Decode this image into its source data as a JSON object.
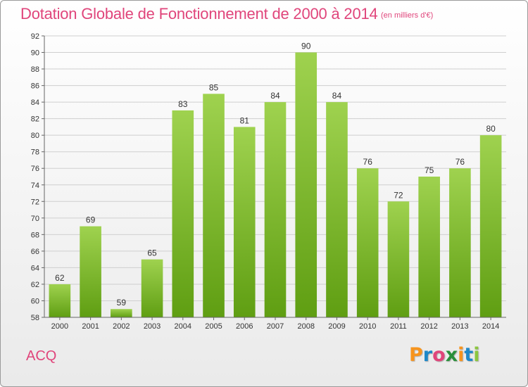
{
  "header": {
    "title": "Dotation Globale de Fonctionnement de 2000 à 2014",
    "subtitle": "(en milliers d'€)"
  },
  "footer": {
    "commune": "ACQ",
    "logo_text": "Proxiti",
    "logo_colors": [
      "#f7941d",
      "#1e88c8",
      "#e0457b",
      "#2a8f3b",
      "#f7941d",
      "#1e88c8",
      "#8cc63f"
    ]
  },
  "chart_data": {
    "type": "bar",
    "categories": [
      "2000",
      "2001",
      "2002",
      "2003",
      "2004",
      "2005",
      "2006",
      "2007",
      "2008",
      "2009",
      "2010",
      "2011",
      "2012",
      "2013",
      "2014"
    ],
    "values": [
      62,
      69,
      59,
      65,
      83,
      85,
      81,
      84,
      90,
      84,
      76,
      72,
      75,
      76,
      80
    ],
    "title": "Dotation Globale de Fonctionnement de 2000 à 2014",
    "subtitle": "(en milliers d'€)",
    "xlabel": "",
    "ylabel": "",
    "ylim": [
      58,
      92
    ],
    "yticks": [
      58,
      60,
      62,
      64,
      66,
      68,
      70,
      72,
      74,
      76,
      78,
      80,
      82,
      84,
      86,
      88,
      90,
      92
    ],
    "grid": true,
    "legend": "none",
    "colors": {
      "bar_top": "#9fd24f",
      "bar_bottom": "#5f9e12",
      "text": "#e0457b",
      "grid": "#cfcfcf"
    }
  }
}
